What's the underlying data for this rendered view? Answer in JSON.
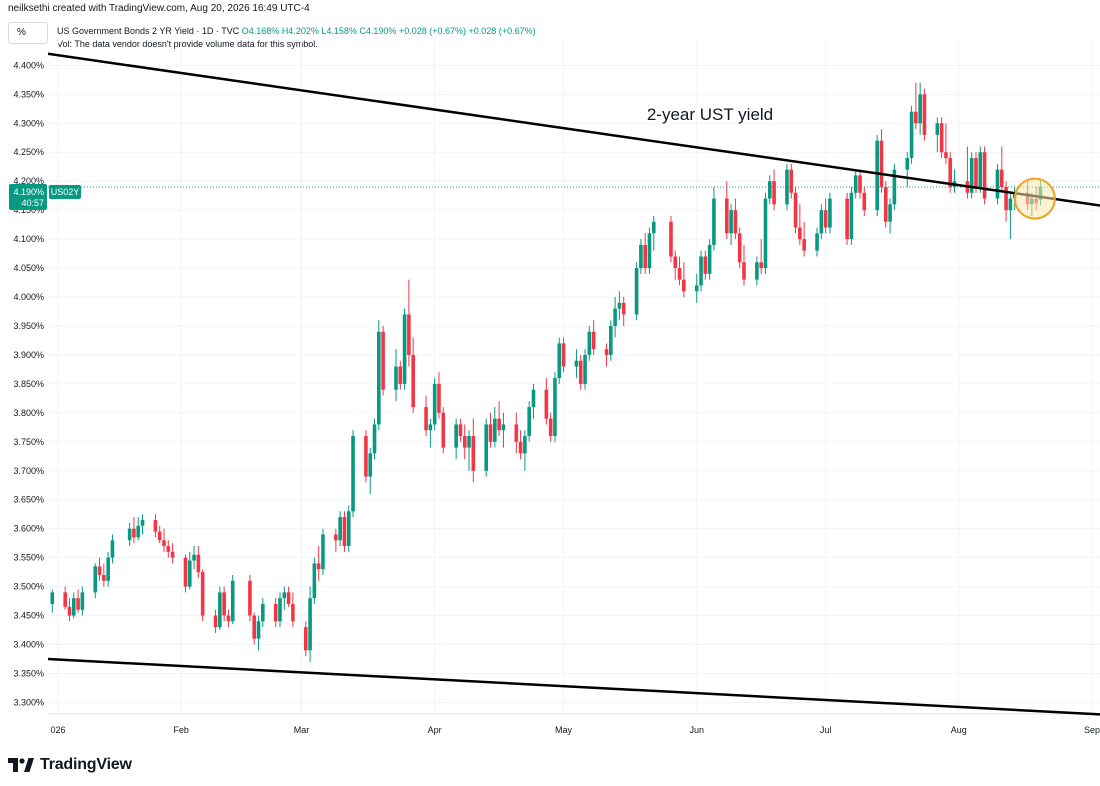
{
  "credit": "neilksethi created with TradingView.com, Aug 20, 2026 16:49 UTC-4",
  "toolbar": {
    "unit_label": "%"
  },
  "legend": {
    "symbol": "US Government Bonds 2 YR Yield · 1D · TVC",
    "open": "O4.168%",
    "high": "H4.202%",
    "low": "L4.158%",
    "close": "C4.190%",
    "change": "+0.028 (+0.67%)",
    "change2": "+0.028 (+0.67%)",
    "volume_note": "Vol: The data vendor doesn't provide volume data for this symbol."
  },
  "price_tag": {
    "value": "4.190%",
    "countdown": "40:57",
    "symbol": "US02Y"
  },
  "footer": {
    "brand": "TradingView"
  },
  "colors": {
    "up": "#089981",
    "down": "#f23645",
    "trendline": "#000000",
    "highlight": "#f0a020",
    "last_price_line": "#089981"
  },
  "chart_data": {
    "type": "candlestick",
    "title": "2-year UST yield",
    "annotation": "2-year UST yield",
    "x_labels": [
      "026",
      "Feb",
      "Mar",
      "Apr",
      "May",
      "Jun",
      "Jul",
      "Aug",
      "Sep"
    ],
    "y_ticks": [
      "4.400%",
      "4.350%",
      "4.300%",
      "4.250%",
      "4.200%",
      "4.150%",
      "4.100%",
      "4.050%",
      "4.000%",
      "3.950%",
      "3.900%",
      "3.850%",
      "3.800%",
      "3.750%",
      "3.700%",
      "3.650%",
      "3.600%",
      "3.550%",
      "3.500%",
      "3.450%",
      "3.400%",
      "3.350%",
      "3.300%"
    ],
    "ylim": [
      3.28,
      4.43
    ],
    "x_range": [
      "2026-01-01",
      "2026-09-01"
    ],
    "candles": [
      [
        "2026-01-02",
        3.47,
        3.495,
        3.455,
        3.49
      ],
      [
        "2026-01-05",
        3.49,
        3.5,
        3.46,
        3.465
      ],
      [
        "2026-01-06",
        3.465,
        3.48,
        3.44,
        3.45
      ],
      [
        "2026-01-07",
        3.45,
        3.49,
        3.445,
        3.48
      ],
      [
        "2026-01-08",
        3.48,
        3.495,
        3.455,
        3.46
      ],
      [
        "2026-01-09",
        3.46,
        3.5,
        3.45,
        3.49
      ],
      [
        "2026-01-12",
        3.49,
        3.54,
        3.48,
        3.535
      ],
      [
        "2026-01-13",
        3.535,
        3.55,
        3.51,
        3.52
      ],
      [
        "2026-01-14",
        3.52,
        3.54,
        3.5,
        3.51
      ],
      [
        "2026-01-15",
        3.51,
        3.56,
        3.5,
        3.55
      ],
      [
        "2026-01-16",
        3.55,
        3.59,
        3.54,
        3.58
      ],
      [
        "2026-01-20",
        3.58,
        3.61,
        3.57,
        3.6
      ],
      [
        "2026-01-21",
        3.6,
        3.62,
        3.575,
        3.585
      ],
      [
        "2026-01-22",
        3.585,
        3.62,
        3.58,
        3.605
      ],
      [
        "2026-01-23",
        3.605,
        3.625,
        3.59,
        3.615
      ],
      [
        "2026-01-26",
        3.615,
        3.625,
        3.585,
        3.595
      ],
      [
        "2026-01-27",
        3.595,
        3.605,
        3.575,
        3.58
      ],
      [
        "2026-01-28",
        3.58,
        3.6,
        3.56,
        3.57
      ],
      [
        "2026-01-29",
        3.57,
        3.58,
        3.55,
        3.56
      ],
      [
        "2026-01-30",
        3.56,
        3.575,
        3.54,
        3.55
      ],
      [
        "2026-02-02",
        3.55,
        3.555,
        3.49,
        3.5
      ],
      [
        "2026-02-03",
        3.5,
        3.56,
        3.495,
        3.545
      ],
      [
        "2026-02-04",
        3.545,
        3.57,
        3.53,
        3.555
      ],
      [
        "2026-02-05",
        3.555,
        3.57,
        3.515,
        3.525
      ],
      [
        "2026-02-06",
        3.525,
        3.53,
        3.44,
        3.45
      ],
      [
        "2026-02-09",
        3.45,
        3.46,
        3.42,
        3.43
      ],
      [
        "2026-02-10",
        3.43,
        3.5,
        3.425,
        3.49
      ],
      [
        "2026-02-11",
        3.49,
        3.5,
        3.44,
        3.45
      ],
      [
        "2026-02-12",
        3.45,
        3.46,
        3.43,
        3.44
      ],
      [
        "2026-02-13",
        3.44,
        3.52,
        3.435,
        3.51
      ],
      [
        "2026-02-17",
        3.51,
        3.52,
        3.44,
        3.45
      ],
      [
        "2026-02-18",
        3.45,
        3.455,
        3.4,
        3.41
      ],
      [
        "2026-02-19",
        3.41,
        3.45,
        3.39,
        3.44
      ],
      [
        "2026-02-20",
        3.44,
        3.48,
        3.43,
        3.47
      ],
      [
        "2026-02-23",
        3.47,
        3.48,
        3.43,
        3.44
      ],
      [
        "2026-02-24",
        3.44,
        3.49,
        3.43,
        3.48
      ],
      [
        "2026-02-25",
        3.48,
        3.5,
        3.46,
        3.49
      ],
      [
        "2026-02-26",
        3.49,
        3.5,
        3.465,
        3.47
      ],
      [
        "2026-02-27",
        3.47,
        3.49,
        3.43,
        3.44
      ],
      [
        "2026-03-02",
        3.43,
        3.44,
        3.38,
        3.39
      ],
      [
        "2026-03-03",
        3.39,
        3.5,
        3.37,
        3.48
      ],
      [
        "2026-03-04",
        3.48,
        3.55,
        3.47,
        3.54
      ],
      [
        "2026-03-05",
        3.54,
        3.57,
        3.51,
        3.53
      ],
      [
        "2026-03-06",
        3.53,
        3.6,
        3.52,
        3.59
      ],
      [
        "2026-03-09",
        3.59,
        3.6,
        3.56,
        3.58
      ],
      [
        "2026-03-10",
        3.58,
        3.63,
        3.57,
        3.62
      ],
      [
        "2026-03-11",
        3.62,
        3.63,
        3.56,
        3.57
      ],
      [
        "2026-03-12",
        3.57,
        3.64,
        3.56,
        3.63
      ],
      [
        "2026-03-13",
        3.63,
        3.77,
        3.62,
        3.76
      ],
      [
        "2026-03-16",
        3.76,
        3.77,
        3.68,
        3.69
      ],
      [
        "2026-03-17",
        3.69,
        3.74,
        3.66,
        3.73
      ],
      [
        "2026-03-18",
        3.73,
        3.79,
        3.72,
        3.78
      ],
      [
        "2026-03-19",
        3.78,
        3.96,
        3.77,
        3.94
      ],
      [
        "2026-03-20",
        3.94,
        3.95,
        3.83,
        3.84
      ],
      [
        "2026-03-23",
        3.84,
        3.91,
        3.82,
        3.88
      ],
      [
        "2026-03-24",
        3.88,
        3.89,
        3.84,
        3.85
      ],
      [
        "2026-03-25",
        3.85,
        3.98,
        3.84,
        3.97
      ],
      [
        "2026-03-26",
        3.97,
        4.03,
        3.88,
        3.9
      ],
      [
        "2026-03-27",
        3.9,
        3.93,
        3.8,
        3.81
      ],
      [
        "2026-03-30",
        3.81,
        3.83,
        3.76,
        3.77
      ],
      [
        "2026-03-31",
        3.77,
        3.79,
        3.74,
        3.78
      ],
      [
        "2026-04-01",
        3.78,
        3.86,
        3.77,
        3.85
      ],
      [
        "2026-04-02",
        3.85,
        3.87,
        3.79,
        3.8
      ],
      [
        "2026-04-03",
        3.8,
        3.81,
        3.73,
        3.74
      ],
      [
        "2026-04-06",
        3.74,
        3.79,
        3.72,
        3.78
      ],
      [
        "2026-04-07",
        3.78,
        3.79,
        3.75,
        3.76
      ],
      [
        "2026-04-08",
        3.76,
        3.78,
        3.72,
        3.74
      ],
      [
        "2026-04-09",
        3.74,
        3.77,
        3.7,
        3.76
      ],
      [
        "2026-04-10",
        3.76,
        3.79,
        3.68,
        3.7
      ],
      [
        "2026-04-13",
        3.7,
        3.79,
        3.69,
        3.78
      ],
      [
        "2026-04-14",
        3.78,
        3.8,
        3.74,
        3.75
      ],
      [
        "2026-04-15",
        3.75,
        3.81,
        3.74,
        3.79
      ],
      [
        "2026-04-16",
        3.79,
        3.82,
        3.76,
        3.77
      ],
      [
        "2026-04-17",
        3.77,
        3.8,
        3.74,
        3.78
      ],
      [
        "2026-04-20",
        3.78,
        3.8,
        3.73,
        3.75
      ],
      [
        "2026-04-21",
        3.75,
        3.77,
        3.72,
        3.73
      ],
      [
        "2026-04-22",
        3.73,
        3.77,
        3.7,
        3.76
      ],
      [
        "2026-04-23",
        3.76,
        3.82,
        3.75,
        3.81
      ],
      [
        "2026-04-24",
        3.81,
        3.85,
        3.79,
        3.84
      ],
      [
        "2026-04-27",
        3.84,
        3.86,
        3.78,
        3.79
      ],
      [
        "2026-04-28",
        3.79,
        3.8,
        3.75,
        3.76
      ],
      [
        "2026-04-29",
        3.76,
        3.87,
        3.75,
        3.86
      ],
      [
        "2026-04-30",
        3.86,
        3.93,
        3.85,
        3.92
      ],
      [
        "2026-05-01",
        3.92,
        3.93,
        3.87,
        3.88
      ],
      [
        "2026-05-04",
        3.88,
        3.91,
        3.86,
        3.89
      ],
      [
        "2026-05-05",
        3.89,
        3.9,
        3.84,
        3.85
      ],
      [
        "2026-05-06",
        3.85,
        3.91,
        3.84,
        3.9
      ],
      [
        "2026-05-07",
        3.9,
        3.95,
        3.89,
        3.94
      ],
      [
        "2026-05-08",
        3.94,
        3.96,
        3.9,
        3.91
      ],
      [
        "2026-05-11",
        3.91,
        3.92,
        3.88,
        3.9
      ],
      [
        "2026-05-12",
        3.9,
        3.96,
        3.89,
        3.95
      ],
      [
        "2026-05-13",
        3.95,
        4.0,
        3.93,
        3.98
      ],
      [
        "2026-05-14",
        3.98,
        4.01,
        3.96,
        3.99
      ],
      [
        "2026-05-15",
        3.99,
        4.0,
        3.95,
        3.97
      ],
      [
        "2026-05-18",
        3.97,
        4.06,
        3.96,
        4.05
      ],
      [
        "2026-05-19",
        4.05,
        4.1,
        4.04,
        4.09
      ],
      [
        "2026-05-20",
        4.09,
        4.11,
        4.04,
        4.05
      ],
      [
        "2026-05-21",
        4.05,
        4.12,
        4.04,
        4.11
      ],
      [
        "2026-05-22",
        4.11,
        4.14,
        4.08,
        4.13
      ],
      [
        "2026-05-26",
        4.13,
        4.14,
        4.06,
        4.07
      ],
      [
        "2026-05-27",
        4.07,
        4.08,
        4.03,
        4.05
      ],
      [
        "2026-05-28",
        4.05,
        4.07,
        4.02,
        4.03
      ],
      [
        "2026-05-29",
        4.03,
        4.06,
        4.0,
        4.01
      ],
      [
        "2026-06-01",
        4.01,
        4.04,
        3.99,
        4.02
      ],
      [
        "2026-06-02",
        4.02,
        4.08,
        4.01,
        4.07
      ],
      [
        "2026-06-03",
        4.07,
        4.08,
        4.03,
        4.04
      ],
      [
        "2026-06-04",
        4.04,
        4.1,
        4.03,
        4.09
      ],
      [
        "2026-06-05",
        4.09,
        4.19,
        4.08,
        4.17
      ],
      [
        "2026-06-08",
        4.17,
        4.2,
        4.1,
        4.11
      ],
      [
        "2026-06-09",
        4.11,
        4.16,
        4.09,
        4.15
      ],
      [
        "2026-06-10",
        4.15,
        4.17,
        4.1,
        4.11
      ],
      [
        "2026-06-11",
        4.11,
        4.12,
        4.05,
        4.06
      ],
      [
        "2026-06-12",
        4.06,
        4.09,
        4.02,
        4.03
      ],
      [
        "2026-06-15",
        4.03,
        4.07,
        4.02,
        4.06
      ],
      [
        "2026-06-16",
        4.06,
        4.1,
        4.04,
        4.05
      ],
      [
        "2026-06-17",
        4.05,
        4.18,
        4.04,
        4.17
      ],
      [
        "2026-06-18",
        4.17,
        4.21,
        4.16,
        4.2
      ],
      [
        "2026-06-19",
        4.2,
        4.22,
        4.15,
        4.16
      ],
      [
        "2026-06-22",
        4.16,
        4.23,
        4.15,
        4.22
      ],
      [
        "2026-06-23",
        4.22,
        4.23,
        4.17,
        4.18
      ],
      [
        "2026-06-24",
        4.18,
        4.19,
        4.11,
        4.12
      ],
      [
        "2026-06-25",
        4.12,
        4.16,
        4.09,
        4.1
      ],
      [
        "2026-06-26",
        4.1,
        4.13,
        4.07,
        4.08
      ],
      [
        "2026-06-29",
        4.08,
        4.12,
        4.07,
        4.11
      ],
      [
        "2026-06-30",
        4.11,
        4.16,
        4.1,
        4.15
      ],
      [
        "2026-07-01",
        4.15,
        4.17,
        4.11,
        4.12
      ],
      [
        "2026-07-02",
        4.12,
        4.18,
        4.11,
        4.17
      ],
      [
        "2026-07-06",
        4.17,
        4.18,
        4.09,
        4.1
      ],
      [
        "2026-07-07",
        4.1,
        4.19,
        4.09,
        4.18
      ],
      [
        "2026-07-08",
        4.18,
        4.22,
        4.17,
        4.21
      ],
      [
        "2026-07-09",
        4.21,
        4.22,
        4.17,
        4.18
      ],
      [
        "2026-07-10",
        4.18,
        4.19,
        4.14,
        4.15
      ],
      [
        "2026-07-13",
        4.15,
        4.28,
        4.14,
        4.27
      ],
      [
        "2026-07-14",
        4.27,
        4.29,
        4.18,
        4.19
      ],
      [
        "2026-07-15",
        4.19,
        4.2,
        4.12,
        4.13
      ],
      [
        "2026-07-16",
        4.13,
        4.17,
        4.11,
        4.16
      ],
      [
        "2026-07-17",
        4.16,
        4.23,
        4.15,
        4.22
      ],
      [
        "2026-07-20",
        4.22,
        4.25,
        4.19,
        4.24
      ],
      [
        "2026-07-21",
        4.24,
        4.33,
        4.23,
        4.32
      ],
      [
        "2026-07-22",
        4.32,
        4.37,
        4.29,
        4.3
      ],
      [
        "2026-07-23",
        4.3,
        4.37,
        4.28,
        4.35
      ],
      [
        "2026-07-24",
        4.35,
        4.36,
        4.27,
        4.28
      ],
      [
        "2026-07-27",
        4.28,
        4.31,
        4.25,
        4.3
      ],
      [
        "2026-07-28",
        4.3,
        4.31,
        4.24,
        4.25
      ],
      [
        "2026-07-29",
        4.25,
        4.3,
        4.23,
        4.24
      ],
      [
        "2026-07-30",
        4.24,
        4.25,
        4.18,
        4.19
      ],
      [
        "2026-07-31",
        4.19,
        4.22,
        4.18,
        4.2
      ],
      [
        "2026-08-03",
        4.2,
        4.26,
        4.17,
        4.18
      ],
      [
        "2026-08-04",
        4.18,
        4.25,
        4.17,
        4.24
      ],
      [
        "2026-08-05",
        4.24,
        4.25,
        4.18,
        4.19
      ],
      [
        "2026-08-06",
        4.19,
        4.26,
        4.18,
        4.25
      ],
      [
        "2026-08-07",
        4.25,
        4.26,
        4.16,
        4.17
      ],
      [
        "2026-08-10",
        4.17,
        4.23,
        4.16,
        4.22
      ],
      [
        "2026-08-11",
        4.22,
        4.26,
        4.18,
        4.19
      ],
      [
        "2026-08-12",
        4.19,
        4.2,
        4.13,
        4.15
      ],
      [
        "2026-08-13",
        4.15,
        4.18,
        4.1,
        4.17
      ],
      [
        "2026-08-14",
        4.17,
        4.19,
        4.15,
        4.18
      ],
      [
        "2026-08-17",
        4.18,
        4.2,
        4.15,
        4.16
      ],
      [
        "2026-08-18",
        4.16,
        4.18,
        4.14,
        4.17
      ],
      [
        "2026-08-19",
        4.17,
        4.19,
        4.15,
        4.162
      ],
      [
        "2026-08-20",
        4.168,
        4.202,
        4.158,
        4.19
      ]
    ],
    "trendlines": [
      {
        "name": "upper",
        "start": [
          "2026-01-01",
          4.42
        ],
        "end": [
          "2026-09-01",
          4.16
        ]
      },
      {
        "name": "lower",
        "start": [
          "2026-01-01",
          3.375
        ],
        "end": [
          "2026-09-01",
          3.28
        ]
      }
    ],
    "last_price": 4.19,
    "highlight": {
      "date": "2026-08-18",
      "value": 4.17
    }
  }
}
